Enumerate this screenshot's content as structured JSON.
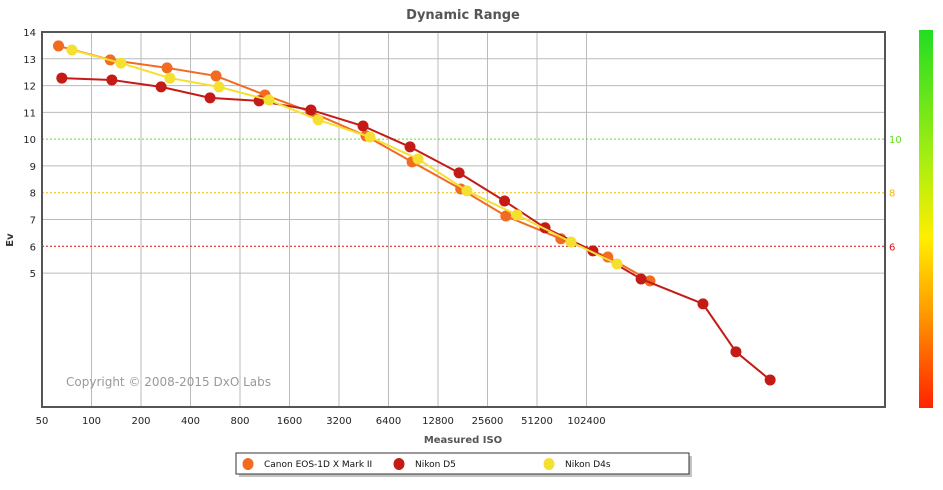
{
  "chart_data": {
    "type": "line",
    "title": "Dynamic Range",
    "xlabel": "Measured ISO",
    "ylabel": "Ev",
    "x_scale": "log2",
    "xlim": [
      50,
      6500000
    ],
    "ylim": [
      0,
      14
    ],
    "x_ticks": [
      50,
      100,
      200,
      400,
      800,
      1600,
      3200,
      6400,
      12800,
      25600,
      51200,
      102400
    ],
    "x_tick_labels": [
      "50",
      "100",
      "200",
      "400",
      "800",
      "1600",
      "3200",
      "6400",
      "12800",
      "25600",
      "51200",
      "102400"
    ],
    "y_ticks": [
      5,
      6,
      7,
      8,
      9,
      10,
      11,
      12,
      13,
      14
    ],
    "y_tick_labels": [
      "5",
      "6",
      "7",
      "8",
      "9",
      "10",
      "11",
      "12",
      "13",
      "14"
    ],
    "grid": true,
    "reference_lines": [
      {
        "value": 10,
        "label": "10",
        "color": "#66dd22"
      },
      {
        "value": 8,
        "label": "8",
        "color": "#f5b800"
      },
      {
        "value": 6,
        "label": "6",
        "color": "#dd1111"
      }
    ],
    "copyright": "Copyright © 2008-2015 DxO Labs",
    "legend_position": "bottom",
    "series": [
      {
        "name": "Canon  EOS-1D X Mark II",
        "color": "#f26b21",
        "x": [
          63,
          130,
          288,
          572,
          1135,
          2160,
          4670,
          8900,
          17600,
          33100,
          71500,
          138000,
          249000
        ],
        "y": [
          13.48,
          12.96,
          12.66,
          12.36,
          11.65,
          11.01,
          10.12,
          9.15,
          8.14,
          7.13,
          6.28,
          5.6,
          4.71
        ]
      },
      {
        "name": "Nikon D5",
        "color": "#c41b17",
        "x": [
          66,
          133,
          265,
          526,
          1045,
          2160,
          4480,
          8650,
          17200,
          32500,
          57300,
          112000,
          220000,
          523000,
          830000,
          1340000
        ],
        "y": [
          12.28,
          12.21,
          11.95,
          11.54,
          11.43,
          11.09,
          10.49,
          9.71,
          8.74,
          7.69,
          6.69,
          5.83,
          4.78,
          3.85,
          2.06,
          1.01
        ]
      },
      {
        "name": "Nikon D4s",
        "color": "#f5e032",
        "x": [
          76,
          151,
          300,
          596,
          1200,
          2390,
          4940,
          9680,
          19200,
          38700,
          82500,
          157000
        ],
        "y": [
          13.33,
          12.84,
          12.28,
          11.95,
          11.46,
          10.72,
          10.08,
          9.26,
          8.07,
          7.17,
          6.16,
          5.34
        ]
      }
    ]
  }
}
